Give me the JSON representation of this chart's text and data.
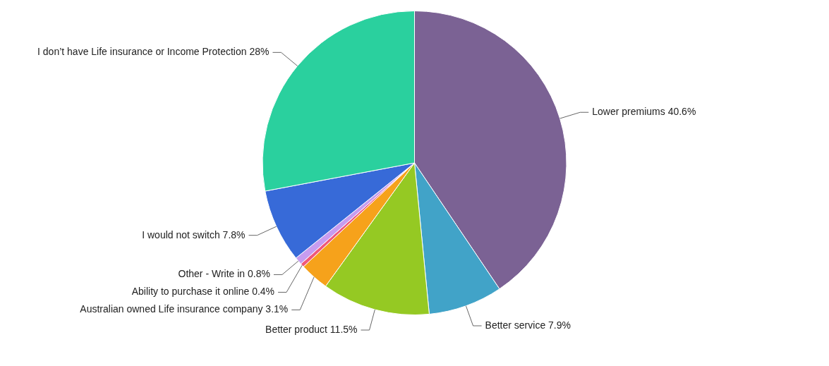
{
  "chart_data": {
    "type": "pie",
    "categories": [
      "Lower premiums",
      "Better service",
      "Better product",
      "Australian owned Life insurance company",
      "Ability to purchase it online",
      "Other - Write in",
      "I would not switch",
      "I don’t have Life insurance or Income Protection"
    ],
    "values": [
      40.6,
      7.9,
      11.5,
      3.1,
      0.4,
      0.8,
      7.8,
      28
    ],
    "value_labels": [
      "40.6%",
      "7.9%",
      "11.5%",
      "3.1%",
      "0.4%",
      "0.8%",
      "7.8%",
      "28%"
    ],
    "colors": [
      "#7b6294",
      "#41a3c8",
      "#95c923",
      "#f6a21b",
      "#f0597a",
      "#c79cf0",
      "#376ad8",
      "#2ad09e"
    ],
    "legend": false
  }
}
